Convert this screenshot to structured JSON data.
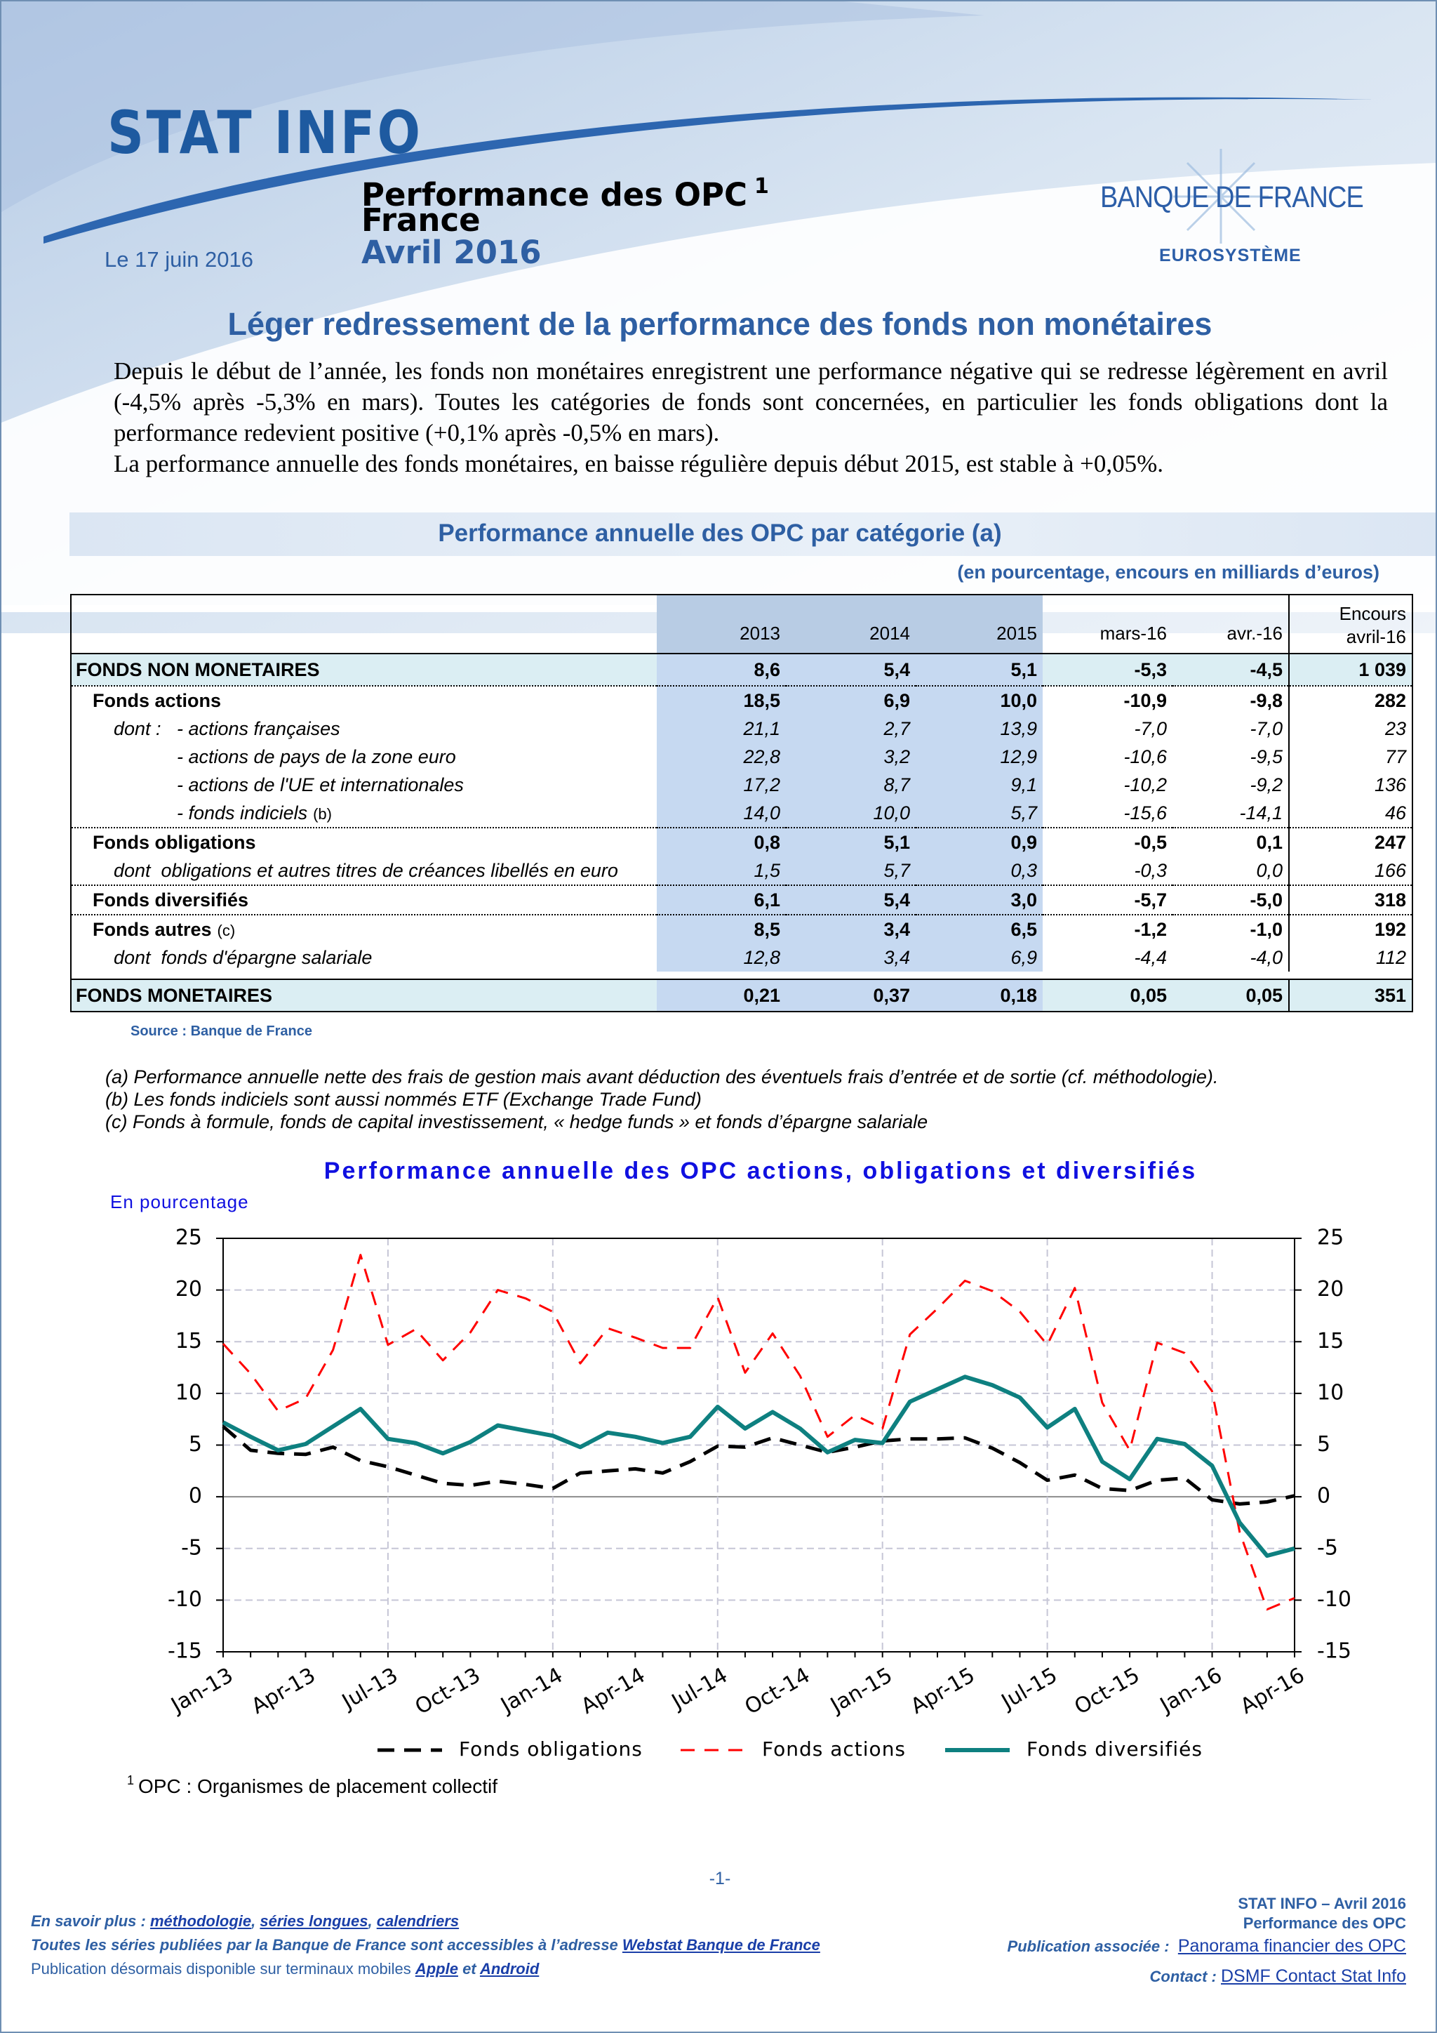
{
  "header": {
    "brand": "STAT INFO",
    "title_line1": "Performance des OPC",
    "title_sup": "1",
    "title_line2": "France",
    "title_line3": "Avril 2016",
    "date": "Le 17 juin 2016",
    "logo_name": "BANQUE DE FRANCE",
    "logo_sub": "EUROSYSTÈME"
  },
  "headline": "Léger redressement de la performance des fonds non monétaires",
  "intro": [
    "Depuis le début de l’année, les fonds non monétaires enregistrent une performance négative qui se redresse légèrement en avril (-4,5% après -5,3% en mars). Toutes les catégories de fonds sont concernées, en particulier les fonds obligations dont la performance redevient positive (+0,1% après -0,5% en mars).",
    "La performance annuelle des fonds monétaires, en baisse régulière depuis début 2015, est stable à +0,05%."
  ],
  "table": {
    "title": "Performance annuelle des OPC par catégorie (a)",
    "unit_note": "(en pourcentage, encours en milliards d’euros)",
    "columns": [
      "2013",
      "2014",
      "2015",
      "mars-16",
      "avr.-16"
    ],
    "encours": [
      "Encours",
      "avril-16"
    ],
    "rows": [
      {
        "label": "FONDS NON MONETAIRES",
        "cells": [
          "8,6",
          "5,4",
          "5,1",
          "-5,3",
          "-4,5",
          "1 039"
        ]
      },
      {
        "label": "Fonds actions",
        "cells": [
          "18,5",
          "6,9",
          "10,0",
          "-10,9",
          "-9,8",
          "282"
        ]
      },
      {
        "prefix": "dont :",
        "label": "- actions françaises",
        "cells": [
          "21,1",
          "2,7",
          "13,9",
          "-7,0",
          "-7,0",
          "23"
        ]
      },
      {
        "label": "- actions de pays de la zone euro",
        "cells": [
          "22,8",
          "3,2",
          "12,9",
          "-10,6",
          "-9,5",
          "77"
        ]
      },
      {
        "label": "- actions de l'UE et internationales",
        "cells": [
          "17,2",
          "8,7",
          "9,1",
          "-10,2",
          "-9,2",
          "136"
        ]
      },
      {
        "label": "- fonds indiciels",
        "note": "(b)",
        "cells": [
          "14,0",
          "10,0",
          "5,7",
          "-15,6",
          "-14,1",
          "46"
        ]
      },
      {
        "label": "Fonds obligations",
        "cells": [
          "0,8",
          "5,1",
          "0,9",
          "-0,5",
          "0,1",
          "247"
        ]
      },
      {
        "label": "dont  obligations et autres titres de créances libellés en euro",
        "cells": [
          "1,5",
          "5,7",
          "0,3",
          "-0,3",
          "0,0",
          "166"
        ]
      },
      {
        "label": "Fonds diversifiés",
        "cells": [
          "6,1",
          "5,4",
          "3,0",
          "-5,7",
          "-5,0",
          "318"
        ]
      },
      {
        "label": "Fonds autres",
        "note": "(c)",
        "cells": [
          "8,5",
          "3,4",
          "6,5",
          "-1,2",
          "-1,0",
          "192"
        ]
      },
      {
        "label": "dont  fonds d'épargne salariale",
        "cells": [
          "12,8",
          "3,4",
          "6,9",
          "-4,4",
          "-4,0",
          "112"
        ]
      },
      {
        "label": "FONDS MONETAIRES",
        "cells": [
          "0,21",
          "0,37",
          "0,18",
          "0,05",
          "0,05",
          "351"
        ]
      }
    ],
    "source": "Source : Banque de France"
  },
  "notes": [
    "(a) Performance annuelle nette des frais de gestion mais avant déduction des éventuels frais d’entrée et de sortie (cf. méthodologie).",
    "(b) Les fonds indiciels sont aussi nommés ETF (Exchange Trade Fund)",
    "(c) Fonds à formule, fonds de capital investissement, « hedge funds » et fonds d’épargne salariale"
  ],
  "chart_data": {
    "type": "line",
    "title": "Performance annuelle des OPC actions, obligations et diversifiés",
    "y_label": "En pourcentage",
    "categories": [
      "Jan-13",
      null,
      null,
      "Apr-13",
      null,
      null,
      "Jul-13",
      null,
      null,
      "Oct-13",
      null,
      null,
      "Jan-14",
      null,
      null,
      "Apr-14",
      null,
      null,
      "Jul-14",
      null,
      null,
      "Oct-14",
      null,
      null,
      "Jan-15",
      null,
      null,
      "Apr-15",
      null,
      null,
      "Jul-15",
      null,
      null,
      "Oct-15",
      null,
      null,
      "Jan-16",
      null,
      null,
      "Apr-16"
    ],
    "ylim": [
      -15,
      25
    ],
    "yticks": [
      -15,
      -10,
      -5,
      0,
      5,
      10,
      15,
      20,
      25
    ],
    "y2lim": [
      -15,
      25
    ],
    "y2ticks": [
      -15,
      -10,
      -5,
      0,
      5,
      10,
      15,
      20,
      25
    ],
    "grid": true,
    "legend": "bottom",
    "series": [
      {
        "name": "Fonds obligations",
        "color": "#000000",
        "style": "dashed",
        "values": [
          6.8,
          4.5,
          4.2,
          4.1,
          4.8,
          3.5,
          2.9,
          2.1,
          1.3,
          1.1,
          1.5,
          1.2,
          0.8,
          2.3,
          2.5,
          2.7,
          2.3,
          3.4,
          4.9,
          4.8,
          5.7,
          5.0,
          4.3,
          4.8,
          5.4,
          5.6,
          5.6,
          5.7,
          4.7,
          3.3,
          1.6,
          2.1,
          0.8,
          0.6,
          1.6,
          1.8,
          -0.3,
          -0.7,
          -0.5,
          0.1
        ]
      },
      {
        "name": "Fonds actions",
        "color": "#ff0000",
        "style": "dashed",
        "values": [
          14.8,
          11.9,
          8.3,
          9.5,
          14.2,
          23.4,
          14.7,
          16.2,
          13.2,
          15.9,
          20.0,
          19.2,
          17.9,
          12.9,
          16.3,
          15.4,
          14.4,
          14.4,
          19.3,
          12.0,
          15.8,
          11.7,
          5.8,
          7.9,
          6.6,
          15.7,
          18.2,
          20.9,
          19.9,
          17.9,
          14.7,
          20.2,
          9.1,
          4.5,
          14.9,
          13.9,
          10.2,
          -3.4,
          -10.9,
          -9.8
        ]
      },
      {
        "name": "Fonds diversifiés",
        "color": "#0e8080",
        "style": "solid",
        "values": [
          7.2,
          5.8,
          4.5,
          5.1,
          6.8,
          8.5,
          5.6,
          5.2,
          4.2,
          5.3,
          6.9,
          6.4,
          5.9,
          4.8,
          6.2,
          5.8,
          5.2,
          5.8,
          8.7,
          6.6,
          8.2,
          6.6,
          4.3,
          5.5,
          5.2,
          9.2,
          10.4,
          11.6,
          10.8,
          9.6,
          6.7,
          8.5,
          3.4,
          1.7,
          5.6,
          5.1,
          3.0,
          -2.5,
          -5.7,
          -5.0
        ]
      }
    ]
  },
  "footnote": {
    "mark": "1",
    "text": "OPC : Organismes de placement collectif"
  },
  "page_number": "-1-",
  "footer": {
    "left": [
      [
        {
          "text": "En savoir plus : "
        },
        {
          "text": "méthodologie",
          "link": true
        },
        {
          "text": ", "
        },
        {
          "text": "séries longues",
          "link": true
        },
        {
          "text": ", "
        },
        {
          "text": "calendriers",
          "link": true
        }
      ],
      [
        {
          "text": "Toutes les séries publiées par la Banque de France sont accessibles à l’adresse "
        },
        {
          "text": "Webstat Banque de France",
          "link": true
        }
      ],
      [
        {
          "text": "Publication désormais disponible sur terminaux mobiles ",
          "plain": true
        },
        {
          "text": "Apple",
          "link": true,
          "strong": true
        },
        {
          "text": " et "
        },
        {
          "text": "Android",
          "link": true,
          "strong": true
        }
      ]
    ],
    "right": [
      [
        {
          "text": "STAT INFO – Avril 2016",
          "strong": true
        }
      ],
      [
        {
          "text": "Performance des OPC",
          "strong": true
        }
      ],
      [
        {
          "text": "Publication associée :  "
        },
        {
          "text": "Panorama financier des OPC",
          "link": true
        }
      ],
      [
        {
          "text": "Contact : "
        },
        {
          "text": "DSMF Contact Stat Info",
          "link": true
        }
      ]
    ]
  }
}
